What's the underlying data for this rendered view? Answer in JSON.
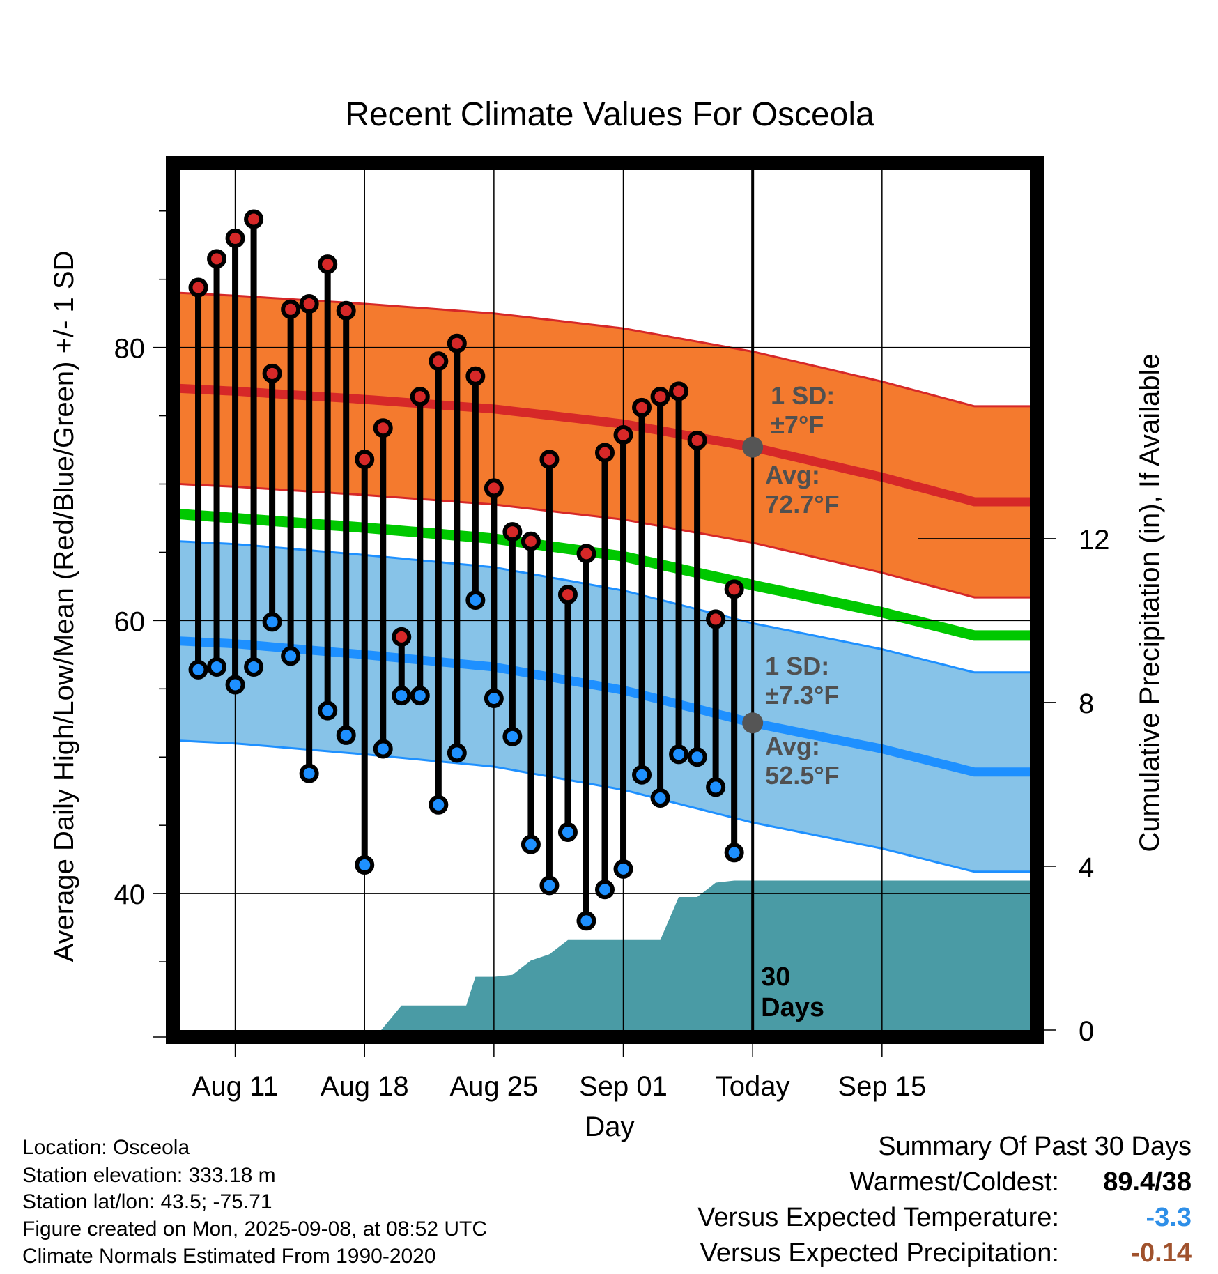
{
  "chart_data": {
    "type": "line",
    "title": "Recent Climate Values For Osceola",
    "xlabel": "Day",
    "ylabel": "Average Daily High/Low/Mean (Red/Blue/Green) +/- 1 SD",
    "y2label": "Cumulative Precipitation (in), If Available",
    "xlim": [
      -3,
      43
    ],
    "ylim": [
      30,
      93
    ],
    "y2lim": [
      0,
      21
    ],
    "x_ticks": [
      {
        "day": 0,
        "label": "Aug 11"
      },
      {
        "day": 7,
        "label": "Aug 18"
      },
      {
        "day": 14,
        "label": "Aug 25"
      },
      {
        "day": 21,
        "label": "Sep 01"
      },
      {
        "day": 28,
        "label": "Today"
      },
      {
        "day": 35,
        "label": "Sep 15"
      }
    ],
    "y_ticks": [
      40,
      60,
      80
    ],
    "y2_ticks": [
      0,
      4,
      8,
      12
    ],
    "today_day": 28,
    "days_label": "30\nDays",
    "colors": {
      "high": "#D62828",
      "high_band": "#F47A2E",
      "low": "#1E90FF",
      "low_band": "#87C3E8",
      "mean": "#00C800",
      "precip": "#4A9BA5",
      "avg_marker": "#555555"
    },
    "normals": {
      "days": [
        -3,
        0,
        7,
        14,
        21,
        28,
        35,
        40
      ],
      "high_avg": [
        77.0,
        76.8,
        76.2,
        75.5,
        74.4,
        72.7,
        70.5,
        68.7
      ],
      "high_sd": 7,
      "low_avg": [
        58.5,
        58.3,
        57.5,
        56.6,
        54.9,
        52.5,
        50.6,
        48.9
      ],
      "low_sd": 7.3,
      "mean_avg": [
        67.8,
        67.5,
        66.8,
        66.0,
        64.7,
        62.6,
        60.6,
        58.9
      ]
    },
    "annotations": {
      "high_sd": "1 SD:\n±7°F",
      "high_avg": "Avg:\n72.7°F",
      "low_sd": "1 SD:\n±7.3°F",
      "low_avg": "Avg:\n52.5°F"
    },
    "series": [
      {
        "name": "High",
        "days": [
          -2,
          -1,
          0,
          1,
          2,
          3,
          4,
          5,
          6,
          7,
          8,
          9,
          10,
          11,
          12,
          13,
          14,
          15,
          16,
          17,
          18,
          19,
          20,
          21,
          22,
          23,
          24,
          25,
          26,
          27
        ],
        "values": [
          84.4,
          86.5,
          88.0,
          89.4,
          78.1,
          82.8,
          83.2,
          86.1,
          82.7,
          71.8,
          74.1,
          58.8,
          76.4,
          79.0,
          80.3,
          77.9,
          69.7,
          66.5,
          65.8,
          71.8,
          61.9,
          64.9,
          72.3,
          73.6,
          75.6,
          76.4,
          76.8,
          73.2,
          60.1,
          62.3
        ]
      },
      {
        "name": "Low",
        "days": [
          -2,
          -1,
          0,
          1,
          2,
          3,
          4,
          5,
          6,
          7,
          8,
          9,
          10,
          11,
          12,
          13,
          14,
          15,
          16,
          17,
          18,
          19,
          20,
          21,
          22,
          23,
          24,
          25,
          26,
          27
        ],
        "values": [
          56.4,
          56.6,
          55.3,
          56.6,
          59.9,
          57.4,
          48.8,
          53.4,
          51.6,
          42.1,
          50.6,
          54.5,
          54.5,
          46.5,
          50.3,
          61.5,
          54.3,
          51.5,
          43.6,
          40.6,
          44.5,
          38.0,
          40.3,
          41.8,
          48.7,
          47.0,
          50.2,
          50.0,
          47.8,
          43.0
        ]
      },
      {
        "name": "Cumulative Precipitation",
        "days": [
          7.9,
          9.0,
          10,
          11,
          12,
          12.5,
          13,
          14,
          15,
          16,
          17,
          18,
          19,
          20,
          21,
          22,
          23,
          24,
          25,
          26,
          27,
          28,
          35,
          40
        ],
        "values": [
          0,
          0.6,
          0.6,
          0.6,
          0.6,
          0.6,
          1.3,
          1.3,
          1.35,
          1.7,
          1.85,
          2.2,
          2.2,
          2.2,
          2.2,
          2.2,
          2.2,
          3.25,
          3.25,
          3.6,
          3.65,
          3.65,
          3.65,
          3.65
        ]
      }
    ]
  },
  "footer": {
    "location": "Location: Osceola",
    "elevation": "Station elevation: 333.18 m",
    "latlon": "Station lat/lon: 43.5; -75.71",
    "created": "Figure created on Mon, 2025-09-08, at 08:52 UTC",
    "normals": "Climate Normals Estimated From 1990-2020"
  },
  "summary": {
    "title": "Summary Of Past 30 Days",
    "warmest_label": "Warmest/Coldest:",
    "warmest_value": "89.4/38",
    "temp_label": "Versus Expected Temperature:",
    "temp_value": "-3.3",
    "temp_color": "#2E8FE8",
    "precip_label": "Versus Expected Precipitation:",
    "precip_value": "-0.14",
    "precip_color": "#A0522D"
  }
}
